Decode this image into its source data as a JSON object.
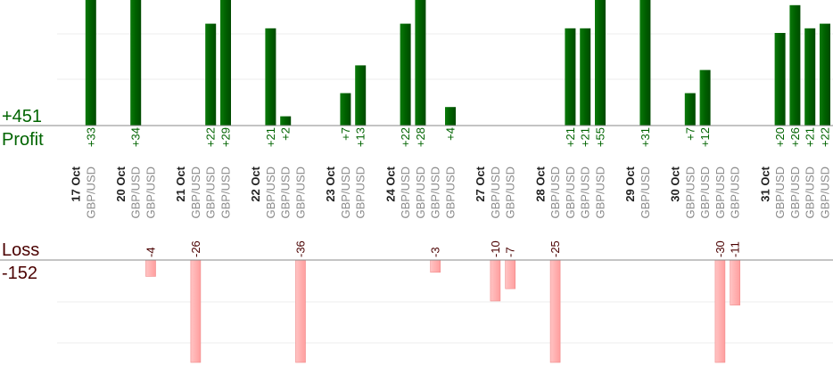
{
  "summary": {
    "profit_total": "+451",
    "profit_label": "Profit",
    "loss_label": "Loss",
    "loss_total": "-152"
  },
  "colors": {
    "profit": "#006400",
    "profit_text": "#006400",
    "loss_fill": "#ffb3b3",
    "loss_text": "#4a0000",
    "pair_text": "#8a8a8a",
    "date_text": "#222222"
  },
  "chart_data": {
    "type": "bar",
    "title": "",
    "days": [
      {
        "date": "17 Oct",
        "trades": [
          {
            "pair": "GBP/USD",
            "value": 33
          }
        ]
      },
      {
        "date": "20 Oct",
        "trades": [
          {
            "pair": "GBP/USD",
            "value": 34
          },
          {
            "pair": "GBP/USD",
            "value": -4
          }
        ]
      },
      {
        "date": "21 Oct",
        "trades": [
          {
            "pair": "GBP/USD",
            "value": -26
          },
          {
            "pair": "GBP/USD",
            "value": 22
          },
          {
            "pair": "GBP/USD",
            "value": 29
          }
        ]
      },
      {
        "date": "22 Oct",
        "trades": [
          {
            "pair": "GBP/USD",
            "value": 21
          },
          {
            "pair": "GBP/USD",
            "value": 2
          },
          {
            "pair": "GBP/USD",
            "value": -36
          }
        ]
      },
      {
        "date": "23 Oct",
        "trades": [
          {
            "pair": "GBP/USD",
            "value": 7
          },
          {
            "pair": "GBP/USD",
            "value": 13
          }
        ]
      },
      {
        "date": "24 Oct",
        "trades": [
          {
            "pair": "GBP/USD",
            "value": 22
          },
          {
            "pair": "GBP/USD",
            "value": 28
          },
          {
            "pair": "GBP/USD",
            "value": -3
          },
          {
            "pair": "GBP/USD",
            "value": 4
          }
        ]
      },
      {
        "date": "27 Oct",
        "trades": [
          {
            "pair": "GBP/USD",
            "value": -10
          },
          {
            "pair": "GBP/USD",
            "value": -7
          }
        ]
      },
      {
        "date": "28 Oct",
        "trades": [
          {
            "pair": "GBP/USD",
            "value": -25
          },
          {
            "pair": "GBP/USD",
            "value": 21
          },
          {
            "pair": "GBP/USD",
            "value": 21
          },
          {
            "pair": "GBP/USD",
            "value": 55
          }
        ]
      },
      {
        "date": "29 Oct",
        "trades": [
          {
            "pair": "GBP/USD",
            "value": 31
          }
        ]
      },
      {
        "date": "30 Oct",
        "trades": [
          {
            "pair": "GBP/USD",
            "value": 7
          },
          {
            "pair": "GBP/USD",
            "value": 12
          },
          {
            "pair": "GBP/USD",
            "value": -30
          },
          {
            "pair": "GBP/USD",
            "value": -11
          }
        ]
      },
      {
        "date": "31 Oct",
        "trades": [
          {
            "pair": "GBP/USD",
            "value": 20
          },
          {
            "pair": "GBP/USD",
            "value": 26
          },
          {
            "pair": "GBP/USD",
            "value": 21
          },
          {
            "pair": "GBP/USD",
            "value": 22
          }
        ]
      }
    ],
    "grid": true
  }
}
